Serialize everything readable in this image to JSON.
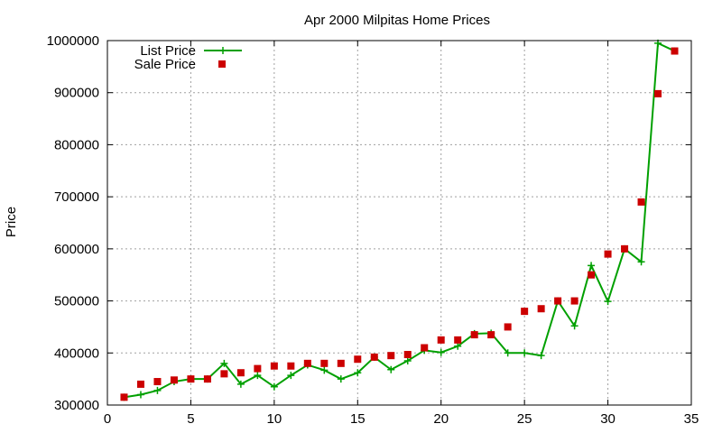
{
  "chart_data": {
    "type": "line",
    "title": "Apr 2000 Milpitas Home Prices",
    "xlabel": "",
    "ylabel": "Price",
    "xlim": [
      0,
      35
    ],
    "ylim": [
      300000,
      1000000
    ],
    "xticks": [
      0,
      5,
      10,
      15,
      20,
      25,
      30,
      35
    ],
    "yticks": [
      300000,
      400000,
      500000,
      600000,
      700000,
      800000,
      900000,
      1000000
    ],
    "grid": true,
    "legend_position": "top-left",
    "series": [
      {
        "name": "List Price",
        "style": "line-with-plus-markers",
        "color": "#00a000",
        "x": [
          1,
          2,
          3,
          4,
          5,
          6,
          7,
          8,
          9,
          10,
          11,
          12,
          13,
          14,
          15,
          16,
          17,
          18,
          19,
          20,
          21,
          22,
          23,
          24,
          25,
          26,
          27,
          28,
          29,
          30,
          31,
          32,
          33,
          34
        ],
        "values": [
          315000,
          320000,
          328000,
          345000,
          350000,
          350000,
          380000,
          340000,
          357000,
          335000,
          357000,
          377000,
          367000,
          350000,
          362000,
          392000,
          368000,
          385000,
          405000,
          401000,
          413000,
          437000,
          438000,
          400000,
          400000,
          395000,
          500000,
          452000,
          568000,
          499000,
          600000,
          575000,
          995000,
          980000
        ]
      },
      {
        "name": "Sale Price",
        "style": "square-markers",
        "color": "#cc0000",
        "x": [
          1,
          2,
          3,
          4,
          5,
          6,
          7,
          8,
          9,
          10,
          11,
          12,
          13,
          14,
          15,
          16,
          17,
          18,
          19,
          20,
          21,
          22,
          23,
          24,
          25,
          26,
          27,
          28,
          29,
          30,
          31,
          32,
          33,
          34
        ],
        "values": [
          315000,
          340000,
          345000,
          348000,
          350000,
          350000,
          360000,
          362000,
          370000,
          375000,
          375000,
          380000,
          380000,
          380000,
          388000,
          392000,
          395000,
          397000,
          410000,
          425000,
          425000,
          435000,
          435000,
          450000,
          480000,
          485000,
          500000,
          500000,
          550000,
          590000,
          600000,
          690000,
          898000,
          980000
        ]
      }
    ]
  }
}
